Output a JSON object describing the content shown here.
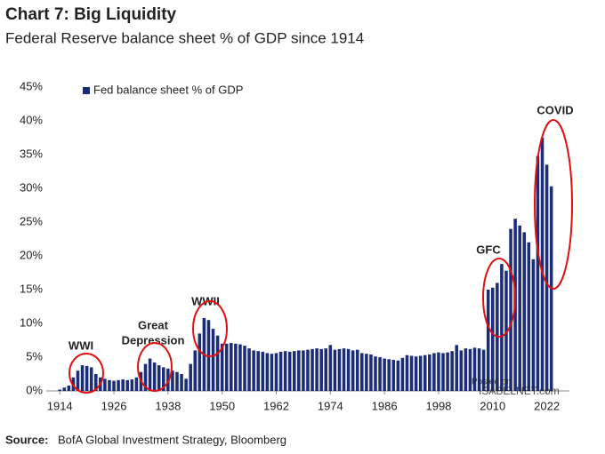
{
  "chart_data": {
    "type": "bar",
    "title": "Chart 7: Big Liquidity",
    "subtitle": "Federal Reserve balance sheet % of GDP since 1914",
    "x": [
      1914,
      1915,
      1916,
      1917,
      1918,
      1919,
      1920,
      1921,
      1922,
      1923,
      1924,
      1925,
      1926,
      1927,
      1928,
      1929,
      1930,
      1931,
      1932,
      1933,
      1934,
      1935,
      1936,
      1937,
      1938,
      1939,
      1940,
      1941,
      1942,
      1943,
      1944,
      1945,
      1946,
      1947,
      1948,
      1949,
      1950,
      1951,
      1952,
      1953,
      1954,
      1955,
      1956,
      1957,
      1958,
      1959,
      1960,
      1961,
      1962,
      1963,
      1964,
      1965,
      1966,
      1967,
      1968,
      1969,
      1970,
      1971,
      1972,
      1973,
      1974,
      1975,
      1976,
      1977,
      1978,
      1979,
      1980,
      1981,
      1982,
      1983,
      1984,
      1985,
      1986,
      1987,
      1988,
      1989,
      1990,
      1991,
      1992,
      1993,
      1994,
      1995,
      1996,
      1997,
      1998,
      1999,
      2000,
      2001,
      2002,
      2003,
      2004,
      2005,
      2006,
      2007,
      2008,
      2009,
      2010,
      2011,
      2012,
      2013,
      2014,
      2015,
      2016,
      2017,
      2018,
      2019,
      2020,
      2021,
      2022,
      2023
    ],
    "series": [
      {
        "name": "Fed balance sheet % of GDP",
        "color": "#1c2d78",
        "values": [
          0.2,
          0.5,
          0.8,
          2.0,
          3.0,
          3.8,
          3.7,
          3.5,
          2.5,
          2.0,
          1.8,
          1.6,
          1.5,
          1.6,
          1.7,
          1.6,
          1.7,
          2.0,
          2.8,
          4.0,
          4.8,
          4.2,
          3.8,
          3.5,
          3.3,
          3.0,
          2.8,
          2.5,
          1.8,
          4.0,
          6.0,
          8.5,
          10.8,
          10.5,
          9.2,
          8.2,
          7.0,
          7.0,
          7.1,
          7.0,
          6.9,
          6.7,
          6.3,
          6.0,
          5.9,
          5.8,
          5.6,
          5.5,
          5.6,
          5.8,
          5.9,
          5.8,
          5.9,
          6.0,
          6.0,
          6.1,
          6.2,
          6.3,
          6.2,
          6.3,
          6.8,
          6.1,
          6.2,
          6.3,
          6.2,
          6.0,
          6.1,
          5.6,
          5.5,
          5.4,
          5.1,
          5.0,
          4.8,
          4.7,
          4.6,
          4.5,
          4.9,
          5.3,
          5.2,
          5.1,
          5.2,
          5.3,
          5.4,
          5.6,
          5.7,
          5.6,
          5.7,
          5.9,
          6.8,
          6.0,
          6.3,
          6.2,
          6.4,
          6.3,
          6.1,
          15.0,
          15.3,
          16.0,
          18.8,
          17.8,
          24.0,
          25.5,
          24.5,
          23.5,
          22.0,
          19.5,
          34.8,
          37.5,
          33.5,
          30.3
        ]
      }
    ],
    "xlim": [
      1911,
      2028
    ],
    "xticks": [
      1914,
      1926,
      1938,
      1950,
      1962,
      1974,
      1986,
      1998,
      2010,
      2022
    ],
    "ylim": [
      0,
      45
    ],
    "yticks": [
      {
        "value": 0,
        "label": "0%"
      },
      {
        "value": 5,
        "label": "5%"
      },
      {
        "value": 10,
        "label": "10%"
      },
      {
        "value": 15,
        "label": "15%"
      },
      {
        "value": 20,
        "label": "20%"
      },
      {
        "value": 25,
        "label": "25%"
      },
      {
        "value": 30,
        "label": "30%"
      },
      {
        "value": 35,
        "label": "35%"
      },
      {
        "value": 40,
        "label": "40%"
      },
      {
        "value": 45,
        "label": "45%"
      }
    ],
    "grid": false,
    "legend": "top-left",
    "annotations": [
      "WWI",
      "Great",
      "Depression",
      "WWII",
      "GFC",
      "COVID"
    ],
    "annotation_color": "#e01010",
    "watermark": [
      "Posted on",
      "ISABELNET.com"
    ],
    "source_label": "Source:",
    "source": "BofA Global Investment Strategy, Bloomberg"
  }
}
